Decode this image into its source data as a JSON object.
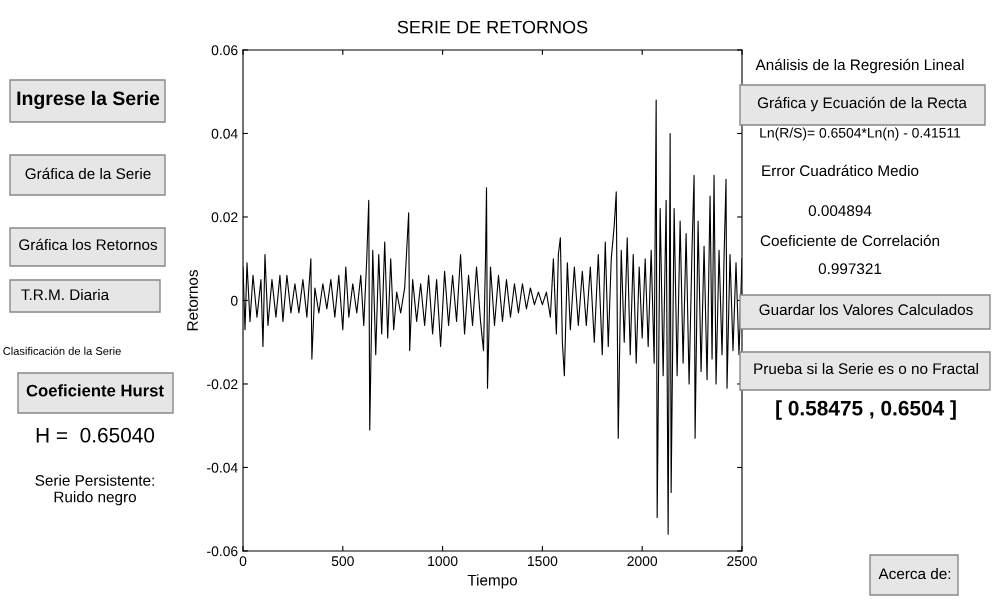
{
  "chart_data": {
    "type": "line",
    "title": "SERIE DE RETORNOS",
    "xlabel": "Tiempo",
    "ylabel": "Retornos",
    "xlim": [
      0,
      2500
    ],
    "ylim": [
      -0.06,
      0.06
    ],
    "xticks": [
      0,
      500,
      1000,
      1500,
      2000,
      2500
    ],
    "yticks": [
      {
        "value": -0.06,
        "label": "-0.06"
      },
      {
        "value": -0.04,
        "label": "-0.04"
      },
      {
        "value": -0.02,
        "label": "-0.02"
      },
      0,
      {
        "value": 0.02,
        "label": "0.02"
      },
      {
        "value": 0.04,
        "label": "0.04"
      },
      {
        "value": 0.06,
        "label": "0.06"
      }
    ],
    "grid": false,
    "legend": false,
    "marker": "none",
    "line_style": "solid",
    "series": [
      {
        "color": "#000000",
        "x": [
          0,
          10,
          20,
          35,
          50,
          70,
          90,
          100,
          110,
          125,
          145,
          165,
          185,
          200,
          220,
          240,
          260,
          280,
          300,
          320,
          340,
          345,
          360,
          380,
          400,
          420,
          440,
          460,
          480,
          500,
          515,
          530,
          550,
          570,
          590,
          605,
          620,
          630,
          635,
          650,
          665,
          680,
          695,
          710,
          725,
          740,
          755,
          770,
          790,
          810,
          830,
          835,
          850,
          870,
          890,
          910,
          930,
          950,
          970,
          990,
          1010,
          1030,
          1050,
          1070,
          1090,
          1110,
          1130,
          1150,
          1170,
          1190,
          1205,
          1215,
          1220,
          1225,
          1240,
          1260,
          1280,
          1300,
          1320,
          1340,
          1360,
          1380,
          1400,
          1420,
          1440,
          1460,
          1480,
          1500,
          1520,
          1540,
          1555,
          1570,
          1580,
          1590,
          1600,
          1610,
          1625,
          1640,
          1660,
          1680,
          1700,
          1720,
          1740,
          1760,
          1780,
          1800,
          1815,
          1830,
          1845,
          1860,
          1870,
          1880,
          1895,
          1910,
          1925,
          1940,
          1955,
          1970,
          1985,
          2000,
          2015,
          2030,
          2045,
          2060,
          2070,
          2075,
          2090,
          2105,
          2120,
          2130,
          2140,
          2145,
          2160,
          2175,
          2190,
          2205,
          2220,
          2235,
          2250,
          2260,
          2265,
          2280,
          2295,
          2310,
          2325,
          2340,
          2350,
          2360,
          2370,
          2385,
          2400,
          2410,
          2420,
          2425,
          2440,
          2455,
          2470,
          2485,
          2500
        ],
        "values": [
          0.008,
          -0.007,
          0.009,
          -0.005,
          0.006,
          -0.004,
          0.005,
          -0.011,
          0.011,
          -0.006,
          0.005,
          -0.004,
          0.006,
          -0.005,
          0.006,
          -0.003,
          0.004,
          -0.003,
          0.005,
          -0.004,
          0.01,
          -0.014,
          0.003,
          -0.003,
          0.004,
          -0.002,
          0.005,
          -0.004,
          0.006,
          -0.007,
          0.008,
          -0.004,
          0.004,
          -0.003,
          0.006,
          -0.006,
          0.01,
          0.024,
          -0.031,
          0.012,
          -0.013,
          0.011,
          -0.008,
          0.014,
          -0.009,
          0.01,
          -0.007,
          0.002,
          -0.003,
          0.003,
          0.021,
          -0.012,
          0.005,
          -0.005,
          0.004,
          -0.006,
          0.006,
          -0.008,
          0.005,
          -0.011,
          0.007,
          -0.006,
          0.006,
          -0.005,
          0.011,
          -0.008,
          0.006,
          -0.006,
          0.008,
          -0.005,
          -0.012,
          0.01,
          0.027,
          -0.021,
          0.008,
          -0.006,
          0.006,
          -0.005,
          0.005,
          -0.004,
          0.004,
          -0.003,
          0.004,
          -0.002,
          0.003,
          -0.001,
          0.002,
          -0.001,
          0.002,
          -0.004,
          0.01,
          -0.008,
          0.011,
          0.015,
          -0.01,
          -0.018,
          0.009,
          -0.007,
          0.008,
          -0.006,
          0.007,
          -0.006,
          0.008,
          -0.01,
          0.011,
          -0.013,
          0.014,
          -0.011,
          0.01,
          0.018,
          0.026,
          -0.033,
          0.012,
          -0.01,
          0.015,
          -0.013,
          0.011,
          -0.015,
          0.008,
          -0.009,
          0.01,
          -0.011,
          0.012,
          -0.015,
          0.048,
          -0.052,
          0.022,
          -0.018,
          0.024,
          -0.056,
          0.04,
          -0.046,
          0.022,
          -0.018,
          0.019,
          -0.015,
          0.016,
          -0.02,
          0.013,
          0.03,
          -0.033,
          0.019,
          -0.017,
          0.013,
          -0.019,
          0.025,
          -0.014,
          0.03,
          -0.02,
          0.012,
          -0.013,
          0.01,
          0.029,
          -0.021,
          0.011,
          -0.012,
          0.009,
          -0.013,
          0.01
        ]
      }
    ],
    "annotations": [
      "Ingrese la Serie",
      "Gráfica de la Serie",
      "Gráfica los Retornos",
      "T.R.M. Diaria",
      "Clasificación de la Serie",
      "Coeficiente Hurst",
      "H =  0.65040",
      "Serie Persistente:\nRuido negro",
      "Análisis de la Regresión Lineal",
      "Gráfica y Ecuación de la Recta",
      "Ln(R/S)= 0.6504*Ln(n) - 0.41511",
      "Error Cuadrático Medio",
      "0.004894",
      "Coeficiente de Correlación",
      "0.997321",
      "Guardar los Valores Calculados",
      "Prueba si la Serie es o no Fractal",
      "[ 0.58475 , 0.6504 ]",
      "Acerca de:"
    ]
  }
}
